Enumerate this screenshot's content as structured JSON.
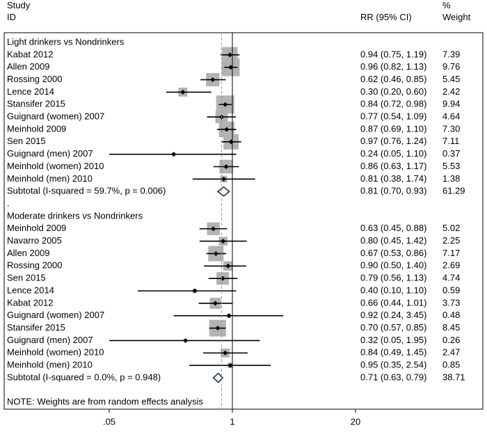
{
  "header": {
    "study_label": "Study",
    "id_label": "ID",
    "rr_label": "RR (95% CI)",
    "pct_label": "%",
    "weight_label": "Weight"
  },
  "chart_data": {
    "type": "forest",
    "x_scale": "log",
    "xlim": [
      0.02,
      25
    ],
    "x_ticks": [
      {
        "value": 0.05,
        "label": ".05"
      },
      {
        "value": 1,
        "label": "1"
      },
      {
        "value": 20,
        "label": "20"
      }
    ],
    "null_line": 1,
    "overall_line": 0.77,
    "rows": [
      {
        "kind": "heading",
        "label": "Light drinkers vs Nondrinkers"
      },
      {
        "kind": "study",
        "label": "Kabat 2012",
        "rr": 0.94,
        "lo": 0.75,
        "hi": 1.19,
        "ci_text": "0.94 (0.75, 1.19)",
        "weight": 7.39,
        "weight_text": "7.39"
      },
      {
        "kind": "study",
        "label": "Allen 2009",
        "rr": 0.96,
        "lo": 0.82,
        "hi": 1.13,
        "ci_text": "0.96 (0.82, 1.13)",
        "weight": 9.76,
        "weight_text": "9.76"
      },
      {
        "kind": "study",
        "label": "Rossing 2000",
        "rr": 0.62,
        "lo": 0.46,
        "hi": 0.85,
        "ci_text": "0.62 (0.46, 0.85)",
        "weight": 5.45,
        "weight_text": "5.45"
      },
      {
        "kind": "study",
        "label": "Lence 2014",
        "rr": 0.3,
        "lo": 0.2,
        "hi": 0.6,
        "ci_text": "0.30 (0.20, 0.60)",
        "weight": 2.42,
        "weight_text": "2.42"
      },
      {
        "kind": "study",
        "label": "Stansifer 2015",
        "rr": 0.84,
        "lo": 0.72,
        "hi": 0.98,
        "ci_text": "0.84 (0.72, 0.98)",
        "weight": 9.94,
        "weight_text": "9.94"
      },
      {
        "kind": "study",
        "label": "Guignard (women) 2007",
        "rr": 0.77,
        "lo": 0.54,
        "hi": 1.09,
        "ci_text": "0.77 (0.54, 1.09)",
        "weight": 4.64,
        "weight_text": "4.64"
      },
      {
        "kind": "study",
        "label": "Meinhold 2009",
        "rr": 0.87,
        "lo": 0.69,
        "hi": 1.1,
        "ci_text": "0.87 (0.69, 1.10)",
        "weight": 7.3,
        "weight_text": "7.30"
      },
      {
        "kind": "study",
        "label": "Sen 2015",
        "rr": 0.97,
        "lo": 0.76,
        "hi": 1.24,
        "ci_text": "0.97 (0.76, 1.24)",
        "weight": 7.11,
        "weight_text": "7.11"
      },
      {
        "kind": "study",
        "label": "Guignard (men) 2007",
        "rr": 0.24,
        "lo": 0.05,
        "hi": 1.1,
        "ci_text": "0.24 (0.05, 1.10)",
        "weight": 0.37,
        "weight_text": "0.37"
      },
      {
        "kind": "study",
        "label": "Meinhold (women) 2010",
        "rr": 0.86,
        "lo": 0.63,
        "hi": 1.17,
        "ci_text": "0.86 (0.63, 1.17)",
        "weight": 5.53,
        "weight_text": "5.53"
      },
      {
        "kind": "study",
        "label": "Meinhold (men) 2010",
        "rr": 0.81,
        "lo": 0.38,
        "hi": 1.74,
        "ci_text": "0.81 (0.38, 1.74)",
        "weight": 1.38,
        "weight_text": "1.38"
      },
      {
        "kind": "subtotal",
        "label": "Subtotal  (I-squared = 59.7%, p = 0.006)",
        "rr": 0.81,
        "lo": 0.7,
        "hi": 0.93,
        "ci_text": "0.81 (0.70, 0.93)",
        "weight_text": "61.29"
      },
      {
        "kind": "spacer",
        "label": "."
      },
      {
        "kind": "heading",
        "label": "Moderate drinkers vs Nondrinkers"
      },
      {
        "kind": "study",
        "label": "Meinhold 2009",
        "rr": 0.63,
        "lo": 0.45,
        "hi": 0.88,
        "ci_text": "0.63 (0.45, 0.88)",
        "weight": 5.02,
        "weight_text": "5.02"
      },
      {
        "kind": "study",
        "label": "Navarro 2005",
        "rr": 0.8,
        "lo": 0.45,
        "hi": 1.42,
        "ci_text": "0.80 (0.45, 1.42)",
        "weight": 2.25,
        "weight_text": "2.25"
      },
      {
        "kind": "study",
        "label": "Allen 2009",
        "rr": 0.67,
        "lo": 0.53,
        "hi": 0.86,
        "ci_text": "0.67 (0.53, 0.86)",
        "weight": 7.17,
        "weight_text": "7.17"
      },
      {
        "kind": "study",
        "label": "Rossing 2000",
        "rr": 0.9,
        "lo": 0.5,
        "hi": 1.4,
        "ci_text": "0.90 (0.50, 1.40)",
        "weight": 2.69,
        "weight_text": "2.69"
      },
      {
        "kind": "study",
        "label": "Sen 2015",
        "rr": 0.79,
        "lo": 0.56,
        "hi": 1.13,
        "ci_text": "0.79 (0.56, 1.13)",
        "weight": 4.74,
        "weight_text": "4.74"
      },
      {
        "kind": "study",
        "label": "Lence 2014",
        "rr": 0.4,
        "lo": 0.1,
        "hi": 1.1,
        "ci_text": "0.40 (0.10, 1.10)",
        "weight": 0.59,
        "weight_text": "0.59"
      },
      {
        "kind": "study",
        "label": "Kabat 2012",
        "rr": 0.66,
        "lo": 0.44,
        "hi": 1.01,
        "ci_text": "0.66 (0.44, 1.01)",
        "weight": 3.73,
        "weight_text": "3.73"
      },
      {
        "kind": "study",
        "label": "Guignard (women) 2007",
        "rr": 0.92,
        "lo": 0.24,
        "hi": 3.45,
        "ci_text": "0.92 (0.24, 3.45)",
        "weight": 0.48,
        "weight_text": "0.48"
      },
      {
        "kind": "study",
        "label": "Stansifer 2015",
        "rr": 0.7,
        "lo": 0.57,
        "hi": 0.85,
        "ci_text": "0.70 (0.57, 0.85)",
        "weight": 8.45,
        "weight_text": "8.45"
      },
      {
        "kind": "study",
        "label": "Guignard (men) 2007",
        "rr": 0.32,
        "lo": 0.05,
        "hi": 1.95,
        "ci_text": "0.32 (0.05, 1.95)",
        "weight": 0.26,
        "weight_text": "0.26"
      },
      {
        "kind": "study",
        "label": "Meinhold (women) 2010",
        "rr": 0.84,
        "lo": 0.49,
        "hi": 1.45,
        "ci_text": "0.84 (0.49, 1.45)",
        "weight": 2.47,
        "weight_text": "2.47"
      },
      {
        "kind": "study",
        "label": "Meinhold (men) 2010",
        "rr": 0.95,
        "lo": 0.35,
        "hi": 2.54,
        "ci_text": "0.95 (0.35, 2.54)",
        "weight": 0.85,
        "weight_text": "0.85"
      },
      {
        "kind": "subtotal",
        "label": "Subtotal  (I-squared = 0.0%, p = 0.948)",
        "rr": 0.71,
        "lo": 0.63,
        "hi": 0.79,
        "ci_text": "0.71 (0.63, 0.79)",
        "weight_text": "38.71"
      }
    ],
    "note": "NOTE: Weights are from random effects analysis",
    "colors": {
      "box": "#b3b3b3",
      "diamond": "#1c2e6b",
      "line": "#000000",
      "dash": "#999999",
      "frame": "#000000"
    }
  }
}
